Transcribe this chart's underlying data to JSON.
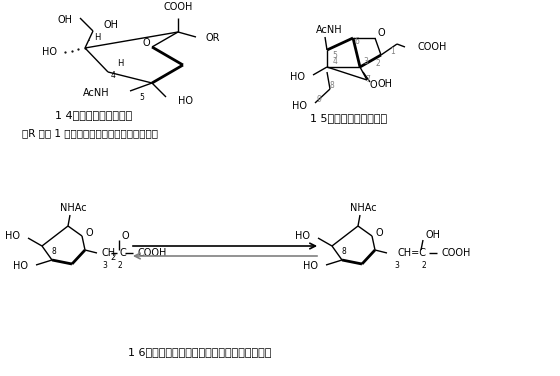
{
  "bg_color": "#ffffff",
  "label_14": "1 4　燕窩中のシアル酸",
  "label_15": "1 5　耳垒中のシアル酸",
  "label_16": "1 6　（燕窩を酸処理してえられるシアル酸）",
  "label_r": "（R は図 1 に示してある糖鎖とペプチド鎖）",
  "fs": 7.0,
  "fs_sm": 5.5,
  "fs_label": 8.0
}
